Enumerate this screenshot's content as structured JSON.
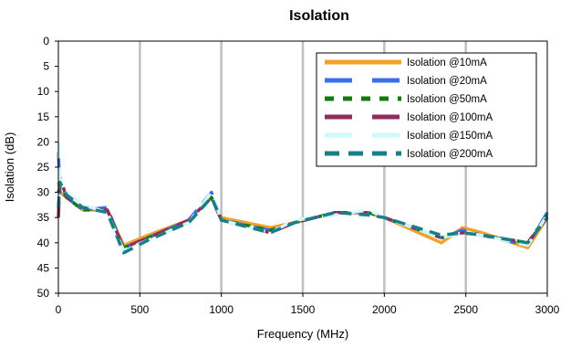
{
  "chart_data": {
    "type": "line",
    "title": "Isolation",
    "xlabel": "Frequency (MHz)",
    "ylabel": "Isolation (dB)",
    "xlim": [
      0,
      3000
    ],
    "ylim": [
      0,
      50
    ],
    "y_inverted": true,
    "xticks": [
      0,
      500,
      1000,
      1500,
      2000,
      2500,
      3000
    ],
    "yticks": [
      0,
      5,
      10,
      15,
      20,
      25,
      30,
      35,
      40,
      45,
      50
    ],
    "grid": "vertical",
    "legend_position": "top-right",
    "series": [
      {
        "name": "Isolation @10mA",
        "color": "#F2A12C",
        "dash": "solid",
        "points": [
          [
            0,
            28
          ],
          [
            10,
            30
          ],
          [
            50,
            31
          ],
          [
            150,
            33.5
          ],
          [
            300,
            33.5
          ],
          [
            400,
            40.5
          ],
          [
            550,
            38.5
          ],
          [
            800,
            35.5
          ],
          [
            940,
            31
          ],
          [
            1000,
            35
          ],
          [
            1300,
            37
          ],
          [
            1450,
            36
          ],
          [
            1700,
            34
          ],
          [
            1900,
            34
          ],
          [
            2000,
            35
          ],
          [
            2350,
            40
          ],
          [
            2480,
            37
          ],
          [
            2600,
            38
          ],
          [
            2880,
            41
          ],
          [
            3000,
            35
          ]
        ]
      },
      {
        "name": "Isolation @20mA",
        "color": "#3B6FE8",
        "dash": "long",
        "points": [
          [
            0,
            22
          ],
          [
            10,
            30
          ],
          [
            50,
            31
          ],
          [
            150,
            33.5
          ],
          [
            300,
            33
          ],
          [
            400,
            41
          ],
          [
            550,
            39
          ],
          [
            800,
            35.5
          ],
          [
            940,
            30
          ],
          [
            1000,
            35.5
          ],
          [
            1300,
            37.5
          ],
          [
            1450,
            36
          ],
          [
            1700,
            34
          ],
          [
            1900,
            34
          ],
          [
            2000,
            35
          ],
          [
            2350,
            39
          ],
          [
            2480,
            37.5
          ],
          [
            2600,
            38.5
          ],
          [
            2880,
            40.5
          ],
          [
            3000,
            34
          ]
        ]
      },
      {
        "name": "Isolation @50mA",
        "color": "#117A11",
        "dash": "short",
        "points": [
          [
            0,
            30
          ],
          [
            10,
            29
          ],
          [
            50,
            31
          ],
          [
            150,
            33.5
          ],
          [
            300,
            33.5
          ],
          [
            400,
            41
          ],
          [
            550,
            39
          ],
          [
            800,
            36
          ],
          [
            940,
            31
          ],
          [
            1000,
            35.5
          ],
          [
            1300,
            37.5
          ],
          [
            1450,
            36
          ],
          [
            1700,
            34
          ],
          [
            1900,
            34
          ],
          [
            2000,
            35
          ],
          [
            2350,
            39
          ],
          [
            2480,
            38
          ],
          [
            2600,
            38.5
          ],
          [
            2880,
            40
          ],
          [
            3000,
            34.5
          ]
        ]
      },
      {
        "name": "Isolation @100mA",
        "color": "#8E2D5E",
        "dash": "long",
        "points": [
          [
            0,
            35
          ],
          [
            10,
            27
          ],
          [
            50,
            31
          ],
          [
            150,
            33
          ],
          [
            300,
            33.5
          ],
          [
            400,
            41
          ],
          [
            550,
            39
          ],
          [
            800,
            35.5
          ],
          [
            940,
            31
          ],
          [
            1000,
            35.5
          ],
          [
            1300,
            38
          ],
          [
            1450,
            36
          ],
          [
            1700,
            34
          ],
          [
            1900,
            34
          ],
          [
            2000,
            35
          ],
          [
            2350,
            39
          ],
          [
            2480,
            38
          ],
          [
            2600,
            38.5
          ],
          [
            2880,
            40
          ],
          [
            3000,
            35
          ]
        ]
      },
      {
        "name": "Isolation @150mA",
        "color": "#CFFAFA",
        "dash": "long",
        "points": [
          [
            0,
            20
          ],
          [
            10,
            28
          ],
          [
            50,
            30
          ],
          [
            150,
            32.5
          ],
          [
            300,
            34
          ],
          [
            400,
            41.5
          ],
          [
            550,
            39.5
          ],
          [
            800,
            36
          ],
          [
            940,
            30
          ],
          [
            1000,
            35.5
          ],
          [
            1300,
            38
          ],
          [
            1450,
            35.5
          ],
          [
            1700,
            34.5
          ],
          [
            1900,
            33.5
          ],
          [
            2000,
            35
          ],
          [
            2350,
            39
          ],
          [
            2480,
            38
          ],
          [
            2600,
            38.5
          ],
          [
            2880,
            40.5
          ],
          [
            3000,
            34.5
          ]
        ]
      },
      {
        "name": "Isolation @200mA",
        "color": "#1A7E86",
        "dash": "medium",
        "points": [
          [
            0,
            33
          ],
          [
            10,
            28
          ],
          [
            50,
            30.5
          ],
          [
            150,
            33
          ],
          [
            300,
            34
          ],
          [
            400,
            42
          ],
          [
            550,
            39.5
          ],
          [
            800,
            36
          ],
          [
            940,
            31
          ],
          [
            1000,
            35.5
          ],
          [
            1300,
            38
          ],
          [
            1450,
            36
          ],
          [
            1700,
            34
          ],
          [
            1900,
            34.5
          ],
          [
            2000,
            35
          ],
          [
            2350,
            38.5
          ],
          [
            2480,
            38
          ],
          [
            2600,
            38.5
          ],
          [
            2880,
            40
          ],
          [
            3000,
            35
          ]
        ]
      }
    ]
  }
}
